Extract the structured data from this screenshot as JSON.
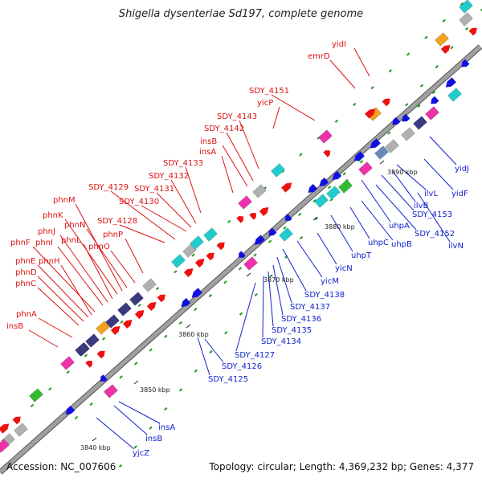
{
  "header": {
    "title": "Shigella dysenteriae Sd197, complete genome"
  },
  "footer": {
    "accession": "Accession: NC_007606",
    "summary": "Topology: circular; Length: 4,369,232 bp; Genes: 4,377"
  },
  "scale_labels": [
    "3840 kbp",
    "3850 kbp",
    "3860 kbp",
    "3870 kbp",
    "3880 kbp",
    "3890 kbp"
  ],
  "forward_gene_labels": [
    "yidI",
    "emrD",
    "SDY_4151",
    "yicP",
    "SDY_4143",
    "SDY_4142",
    "insB",
    "insA",
    "SDY_4133",
    "SDY_4132",
    "SDY_4131",
    "SDY_4130",
    "SDY_4129",
    "SDY_4128",
    "phnP",
    "phnO",
    "phnN",
    "phnM",
    "phnK",
    "phnL",
    "phnJ",
    "phnI",
    "phnF",
    "phnE",
    "phnH",
    "phnD",
    "phnC",
    "phnA",
    "insB"
  ],
  "reverse_gene_labels": [
    "yidJ",
    "yidF",
    "ilvL",
    "ilvB",
    "SDY_4153",
    "uhpA",
    "SDY_4152",
    "ilvN",
    "uhpB",
    "uhpC",
    "uhpT",
    "yicN",
    "yicM",
    "SDY_4138",
    "SDY_4137",
    "SDY_4136",
    "SDY_4135",
    "SDY_4134",
    "SDY_4127",
    "SDY_4126",
    "SDY_4125",
    "insA",
    "insB",
    "yjcZ"
  ],
  "colors": {
    "backbone": "#8a8a8a",
    "forward_gene": "#ee1111",
    "reverse_gene": "#1111dd",
    "forward_label": "#dd1111",
    "reverse_label": "#1122cc",
    "cog_cyan": "#22cccc",
    "cog_navy": "#3a3a80",
    "cog_magenta": "#ee33aa",
    "cog_orange": "#f4a020",
    "cog_green": "#33bb33",
    "cog_grey": "#b0b0b0",
    "cog_blue": "#6688bb",
    "gc_dash": "#229922"
  }
}
